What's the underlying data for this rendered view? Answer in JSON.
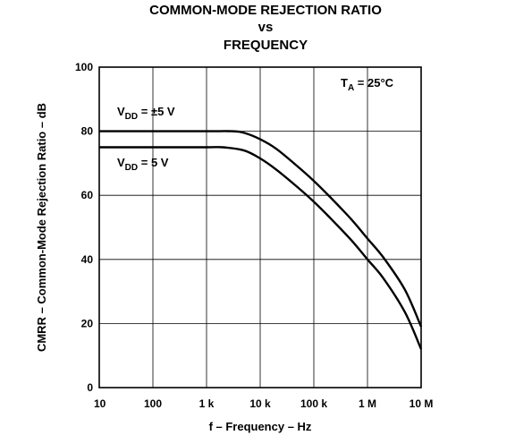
{
  "chart_data": {
    "type": "line",
    "title": [
      "COMMON-MODE REJECTION RATIO",
      "vs",
      "FREQUENCY"
    ],
    "xlabel": "f – Frequency – Hz",
    "ylabel": "CMRR – Common-Mode Rejection Ratio – dB",
    "x_scale": "log",
    "xlim": [
      10,
      10000000
    ],
    "ylim": [
      0,
      100
    ],
    "x_ticks": [
      {
        "value": 10,
        "label": "10"
      },
      {
        "value": 100,
        "label": "100"
      },
      {
        "value": 1000,
        "label": "1 k"
      },
      {
        "value": 10000,
        "label": "10 k"
      },
      {
        "value": 100000,
        "label": "100 k"
      },
      {
        "value": 1000000,
        "label": "1 M"
      },
      {
        "value": 10000000,
        "label": "10 M"
      }
    ],
    "y_ticks": [
      {
        "value": 0,
        "label": "0"
      },
      {
        "value": 20,
        "label": "20"
      },
      {
        "value": 40,
        "label": "40"
      },
      {
        "value": 60,
        "label": "60"
      },
      {
        "value": 80,
        "label": "80"
      },
      {
        "value": 100,
        "label": "100"
      }
    ],
    "grid": true,
    "annotations": {
      "ta": {
        "main": "T",
        "sub": "A",
        "rest": " = 25°C"
      },
      "vdd_dual": {
        "main": "V",
        "sub": "DD",
        "rest": " = ±5 V"
      },
      "vdd_single": {
        "main": "V",
        "sub": "DD",
        "rest": " = 5 V"
      }
    },
    "series": [
      {
        "label_key": "vdd_dual",
        "x": [
          10,
          100,
          1000,
          3000,
          5000,
          10000,
          20000,
          50000,
          100000,
          200000,
          500000,
          1000000,
          2000000,
          5000000,
          10000000
        ],
        "y": [
          80,
          80,
          80,
          80,
          79.5,
          77.5,
          74.5,
          69,
          64.5,
          59.5,
          52.5,
          46.5,
          40.5,
          30.5,
          19
        ]
      },
      {
        "label_key": "vdd_single",
        "x": [
          10,
          100,
          1000,
          2000,
          5000,
          10000,
          20000,
          50000,
          100000,
          200000,
          500000,
          1000000,
          2000000,
          5000000,
          10000000
        ],
        "y": [
          75,
          75,
          75,
          75,
          74,
          71.5,
          68,
          62.5,
          58,
          53,
          46,
          40,
          34,
          23.5,
          12
        ]
      }
    ]
  }
}
